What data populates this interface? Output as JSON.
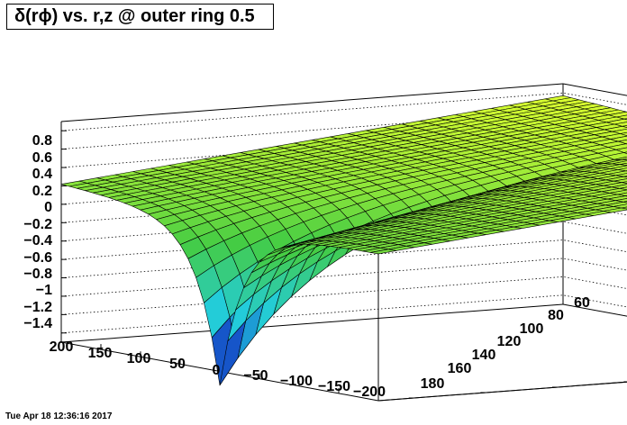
{
  "title": "δ(rϕ) vs. r,z @ outer ring 0.5",
  "timestamp": "Tue Apr 18 12:36:16 2017",
  "chart_data": {
    "type": "surface",
    "title": "δ(rϕ) vs. r,z @ outer ring 0.5",
    "x_axis": {
      "ticks": [
        "200",
        "150",
        "100",
        "50",
        "0",
        "−50",
        "−100",
        "−150",
        "−200"
      ],
      "range": [
        -200,
        200
      ]
    },
    "y_axis": {
      "ticks": [
        "180",
        "160",
        "140",
        "120",
        "100",
        "80",
        "60"
      ],
      "range": [
        50,
        190
      ]
    },
    "z_axis": {
      "ticks": [
        "0.8",
        "0.6",
        "0.4",
        "0.2",
        "0",
        "−0.2",
        "−0.4",
        "−0.6",
        "−0.8",
        "−1",
        "−1.2",
        "−1.4"
      ],
      "range": [
        -1.5,
        0.9
      ]
    },
    "grid": true,
    "colors": {
      "high": "#d8ff30",
      "mid": "#44cc44",
      "low_mid": "#22ccdd",
      "low": "#1020c0"
    }
  }
}
